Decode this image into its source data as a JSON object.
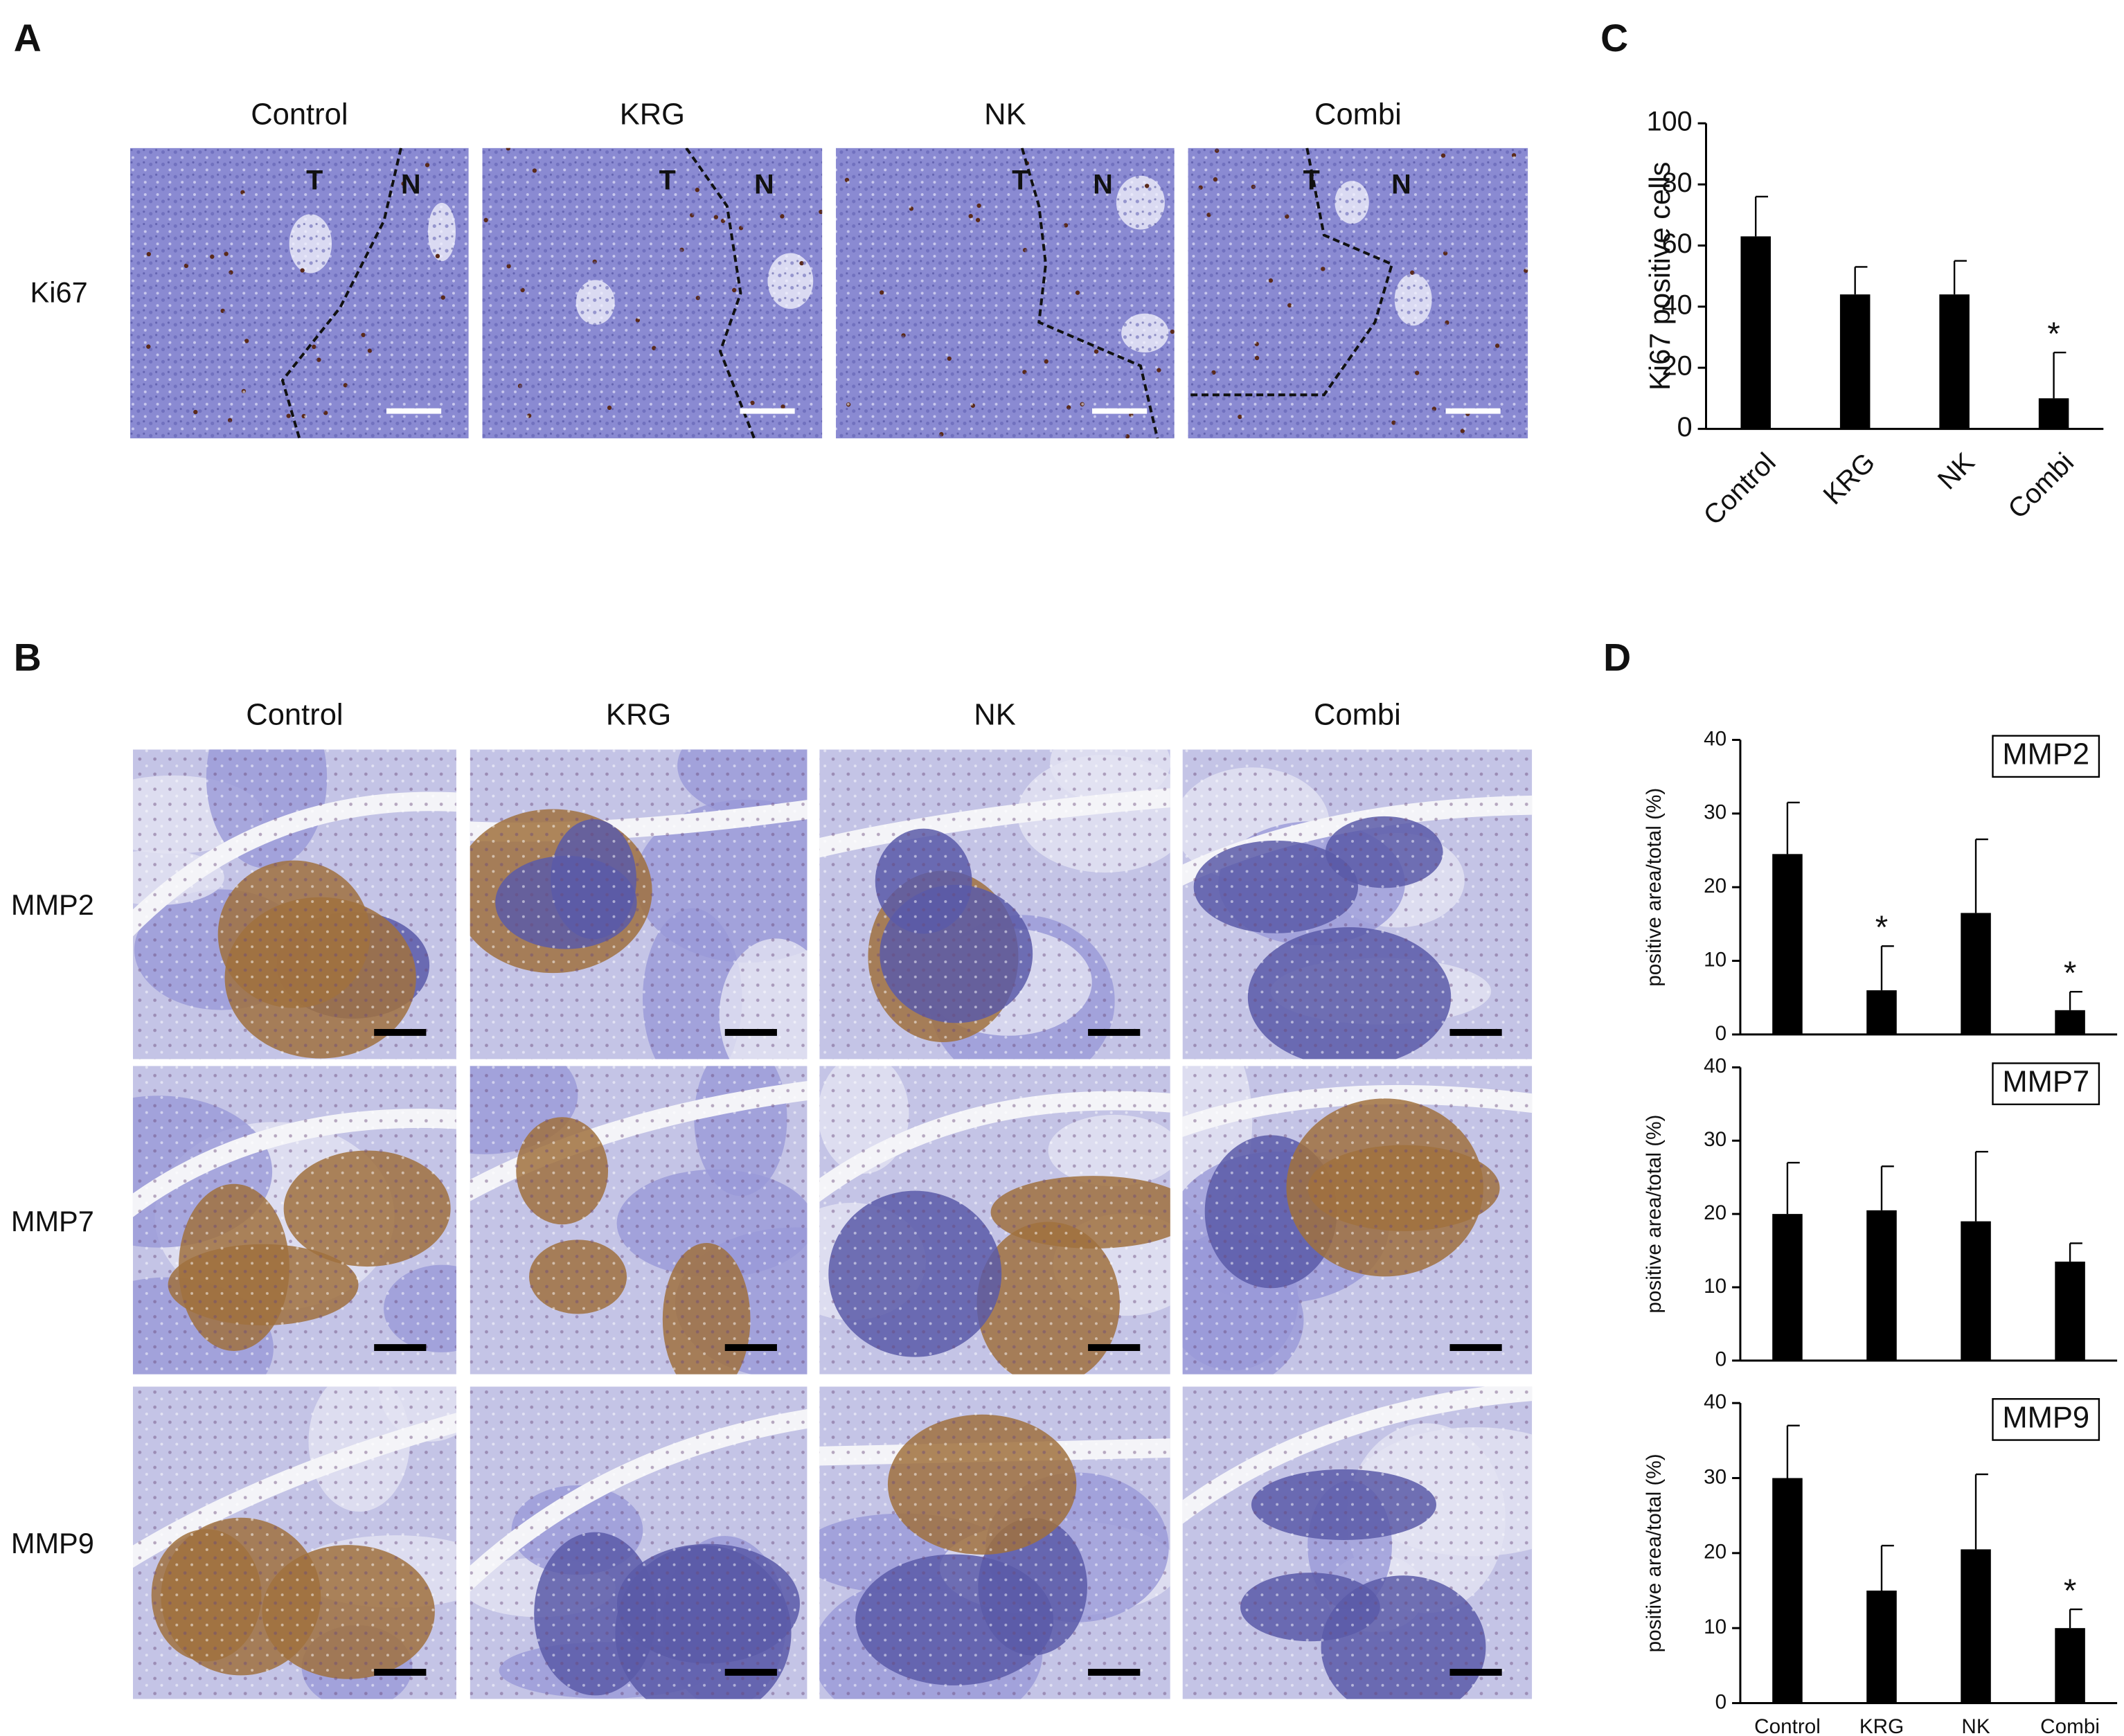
{
  "panels": {
    "A": {
      "label": "A",
      "columns": [
        "Control",
        "KRG",
        "NK",
        "Combi"
      ],
      "row_labels": [
        "Ki67"
      ],
      "regions": [
        "T",
        "N"
      ]
    },
    "B": {
      "label": "B",
      "columns": [
        "Control",
        "KRG",
        "NK",
        "Combi"
      ],
      "row_labels": [
        "MMP2",
        "MMP7",
        "MMP9"
      ]
    },
    "C": {
      "label": "C"
    },
    "D": {
      "label": "D"
    }
  },
  "chart_data": [
    {
      "type": "bar",
      "y_label": "Ki67 positive cells",
      "categories": [
        "Control",
        "KRG",
        "NK",
        "Combi"
      ],
      "values": [
        63,
        44,
        44,
        10
      ],
      "errors": [
        13,
        9,
        11,
        15
      ],
      "significance": [
        null,
        null,
        null,
        "*"
      ],
      "color": "#000000",
      "ylim": [
        0,
        100
      ],
      "yticks": [
        0,
        20,
        40,
        60,
        80,
        100
      ]
    },
    {
      "type": "bar",
      "title": "MMP2",
      "y_label": "positive area/total (%)",
      "categories": [
        null,
        null,
        null,
        null
      ],
      "values": [
        24.5,
        6,
        16.5,
        3.3
      ],
      "errors": [
        7,
        6,
        10,
        2.5
      ],
      "significance": [
        null,
        "*",
        null,
        "*"
      ],
      "color": "#000000",
      "ylim": [
        0,
        40
      ],
      "yticks": [
        0,
        10,
        20,
        30,
        40
      ]
    },
    {
      "type": "bar",
      "title": "MMP7",
      "y_label": "positive area/total (%)",
      "categories": [
        null,
        null,
        null,
        null
      ],
      "values": [
        20,
        20.5,
        19,
        13.5
      ],
      "errors": [
        7,
        6,
        9.5,
        2.5
      ],
      "significance": [
        null,
        null,
        null,
        null
      ],
      "color": "#000000",
      "ylim": [
        0,
        40
      ],
      "yticks": [
        0,
        10,
        20,
        30,
        40
      ]
    },
    {
      "type": "bar",
      "title": "MMP9",
      "y_label": "positive area/total (%)",
      "categories": [
        "Control",
        "KRG",
        "NK",
        "Combi"
      ],
      "values": [
        30,
        15,
        20.5,
        10
      ],
      "errors": [
        7,
        6,
        10,
        2.5
      ],
      "significance": [
        null,
        null,
        null,
        "*"
      ],
      "color": "#000000",
      "ylim": [
        0,
        40
      ],
      "yticks": [
        0,
        10,
        20,
        30,
        40
      ]
    }
  ]
}
